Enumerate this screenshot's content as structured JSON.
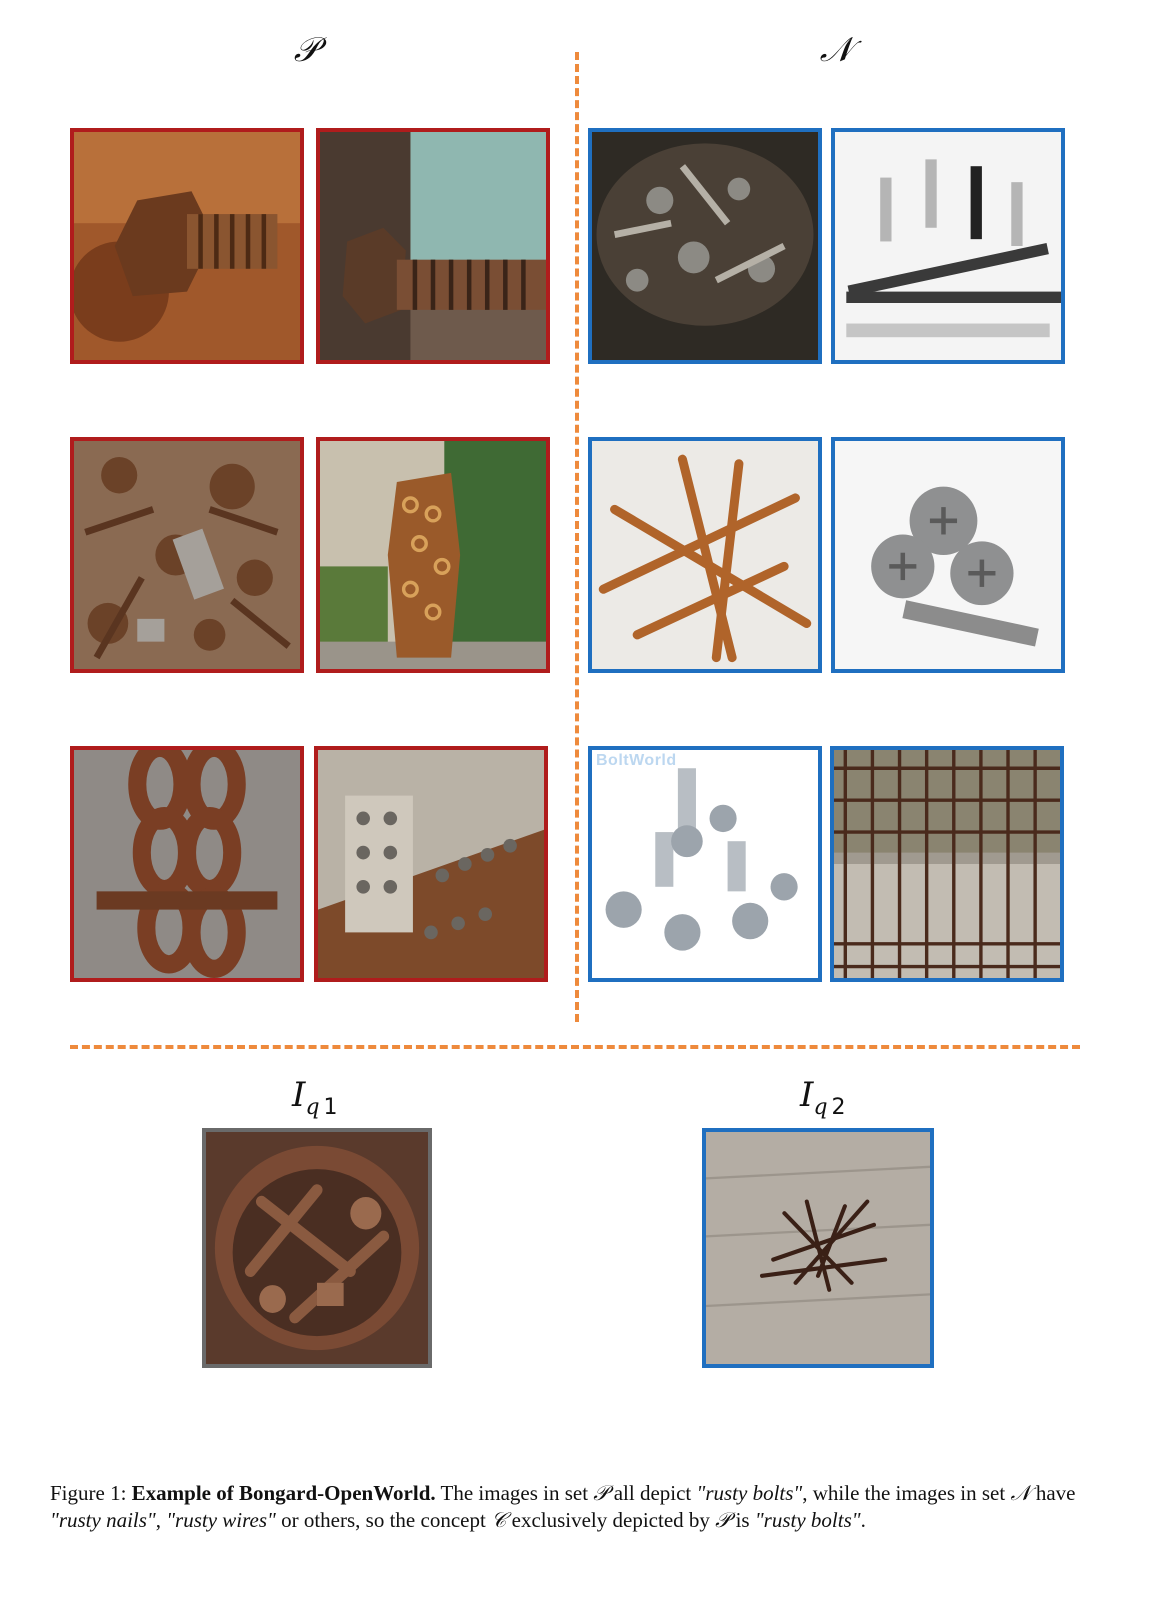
{
  "sets": {
    "positive_label": "𝒫",
    "negative_label": "𝒩"
  },
  "watermarks": {
    "boltworld": "BoltWorld"
  },
  "queries": {
    "q1": {
      "symbol": "I",
      "sub": "q",
      "num": "1"
    },
    "q2": {
      "symbol": "I",
      "sub": "q",
      "num": "2"
    }
  },
  "caption": {
    "prefix": "Figure 1: ",
    "title": "Example of Bongard-OpenWorld.",
    "t1": " The images in set ",
    "P1": "𝒫",
    "t2": " all depict ",
    "q_bolts": "\"rusty bolts\"",
    "t3": ", while the images in set ",
    "N1": "𝒩",
    "t4": " have ",
    "q_nails": "\"rusty nails\"",
    "t5": ", ",
    "q_wires": "\"rusty wires\"",
    "t6": " or others, so the concept ",
    "C1": "𝒞",
    "t7": " exclusively depicted by ",
    "P2": "𝒫",
    "t8": " is ",
    "q_bolts2": "\"rusty bolts\"",
    "t9": "."
  },
  "colors": {
    "positive_border": "#b01c1c",
    "negative_border": "#1f6fc0",
    "divider": "#ee8a3c"
  }
}
